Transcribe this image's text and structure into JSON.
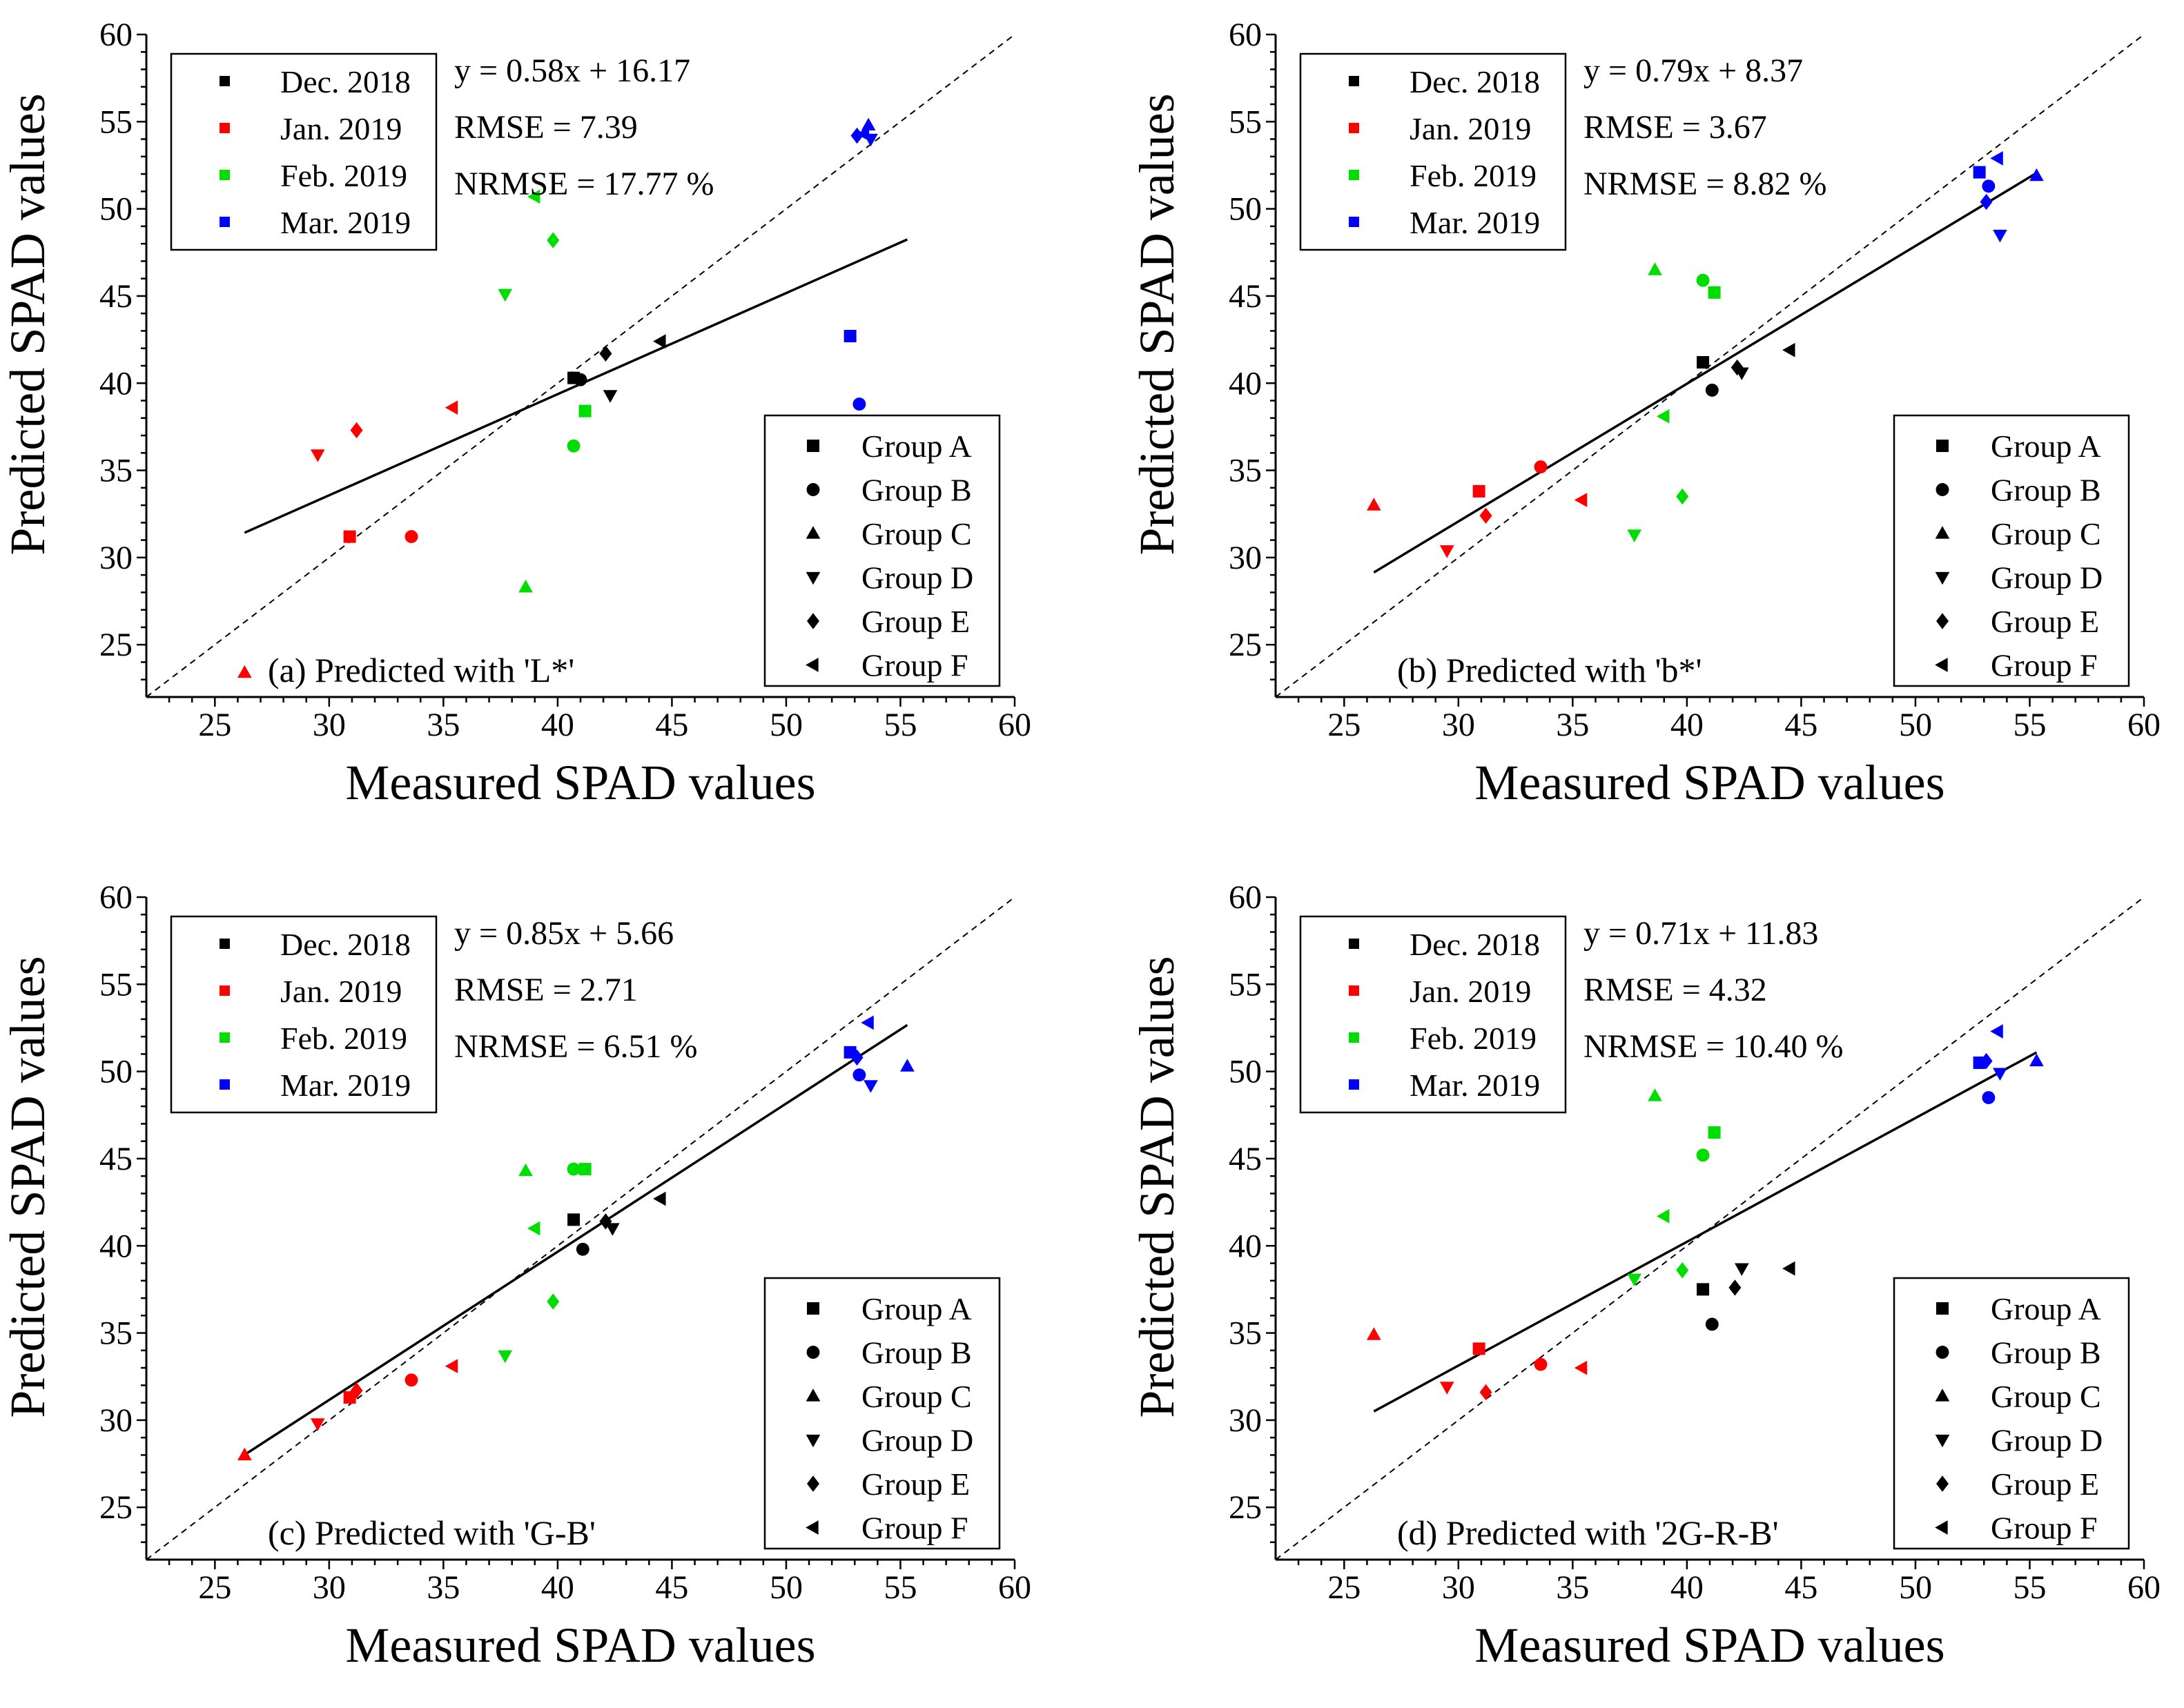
{
  "colors": {
    "Dec. 2018": "#000000",
    "Jan. 2019": "#ff0000",
    "Feb. 2019": "#00dd00",
    "Mar. 2019": "#0000ff"
  },
  "shared": {
    "xlabel": "Measured SPAD values",
    "ylabel": "Predicted SPAD values",
    "xlim": [
      22,
      60
    ],
    "ylim": [
      22,
      60
    ],
    "xticks": [
      25,
      30,
      35,
      40,
      45,
      50,
      55,
      60
    ],
    "yticks": [
      25,
      30,
      35,
      40,
      45,
      50,
      55,
      60
    ],
    "month_legend": [
      "Dec. 2018",
      "Jan. 2019",
      "Feb. 2019",
      "Mar. 2019"
    ],
    "group_legend": [
      {
        "label": "Group A",
        "marker": "square"
      },
      {
        "label": "Group B",
        "marker": "circle"
      },
      {
        "label": "Group C",
        "marker": "triangle-up"
      },
      {
        "label": "Group D",
        "marker": "triangle-down"
      },
      {
        "label": "Group E",
        "marker": "diamond"
      },
      {
        "label": "Group F",
        "marker": "triangle-left"
      }
    ]
  },
  "chart_data": [
    {
      "type": "scatter",
      "id": "a",
      "title": "(a) Predicted with 'L*'",
      "equation": "y = 0.58x + 16.17",
      "rmse": "RMSE = 7.39",
      "nrmse": "NRMSE = 17.77 %",
      "fit": {
        "slope": 0.58,
        "intercept": 16.17,
        "x_range": [
          26.3,
          55.3
        ]
      },
      "points": [
        {
          "x": 40.7,
          "y": 40.3,
          "month": "Dec. 2018",
          "group": "square"
        },
        {
          "x": 41.0,
          "y": 40.2,
          "month": "Dec. 2018",
          "group": "circle"
        },
        {
          "x": 42.3,
          "y": 39.3,
          "month": "Dec. 2018",
          "group": "triangle-down"
        },
        {
          "x": 42.1,
          "y": 41.7,
          "month": "Dec. 2018",
          "group": "diamond"
        },
        {
          "x": 44.5,
          "y": 42.4,
          "month": "Dec. 2018",
          "group": "triangle-left"
        },
        {
          "x": 30.9,
          "y": 31.2,
          "month": "Jan. 2019",
          "group": "square"
        },
        {
          "x": 33.6,
          "y": 31.2,
          "month": "Jan. 2019",
          "group": "circle"
        },
        {
          "x": 26.3,
          "y": 23.4,
          "month": "Jan. 2019",
          "group": "triangle-up"
        },
        {
          "x": 29.5,
          "y": 35.9,
          "month": "Jan. 2019",
          "group": "triangle-down"
        },
        {
          "x": 31.2,
          "y": 37.3,
          "month": "Jan. 2019",
          "group": "diamond"
        },
        {
          "x": 35.4,
          "y": 38.6,
          "month": "Jan. 2019",
          "group": "triangle-left"
        },
        {
          "x": 41.2,
          "y": 38.4,
          "month": "Feb. 2019",
          "group": "square"
        },
        {
          "x": 40.7,
          "y": 36.4,
          "month": "Feb. 2019",
          "group": "circle"
        },
        {
          "x": 38.6,
          "y": 28.3,
          "month": "Feb. 2019",
          "group": "triangle-up"
        },
        {
          "x": 37.7,
          "y": 45.1,
          "month": "Feb. 2019",
          "group": "triangle-down"
        },
        {
          "x": 39.8,
          "y": 48.2,
          "month": "Feb. 2019",
          "group": "diamond"
        },
        {
          "x": 39.0,
          "y": 50.7,
          "month": "Feb. 2019",
          "group": "triangle-left"
        },
        {
          "x": 52.8,
          "y": 42.7,
          "month": "Mar. 2019",
          "group": "square"
        },
        {
          "x": 53.2,
          "y": 38.8,
          "month": "Mar. 2019",
          "group": "circle"
        },
        {
          "x": 53.6,
          "y": 54.8,
          "month": "Mar. 2019",
          "group": "triangle-up"
        },
        {
          "x": 53.7,
          "y": 54.0,
          "month": "Mar. 2019",
          "group": "triangle-down"
        },
        {
          "x": 53.1,
          "y": 54.2,
          "month": "Mar. 2019",
          "group": "diamond"
        },
        {
          "x": 53.4,
          "y": 54.3,
          "month": "Mar. 2019",
          "group": "triangle-left"
        }
      ]
    },
    {
      "type": "scatter",
      "id": "b",
      "title": "(b) Predicted with 'b*'",
      "equation": "y = 0.79x + 8.37",
      "rmse": "RMSE = 3.67",
      "nrmse": "NRMSE = 8.82 %",
      "fit": {
        "slope": 0.79,
        "intercept": 8.37,
        "x_range": [
          26.3,
          55.3
        ]
      },
      "points": [
        {
          "x": 40.7,
          "y": 41.2,
          "month": "Dec. 2018",
          "group": "square"
        },
        {
          "x": 41.1,
          "y": 39.6,
          "month": "Dec. 2018",
          "group": "circle"
        },
        {
          "x": 42.4,
          "y": 40.6,
          "month": "Dec. 2018",
          "group": "triangle-down"
        },
        {
          "x": 42.2,
          "y": 40.9,
          "month": "Dec. 2018",
          "group": "diamond"
        },
        {
          "x": 44.5,
          "y": 41.9,
          "month": "Dec. 2018",
          "group": "triangle-left"
        },
        {
          "x": 30.9,
          "y": 33.8,
          "month": "Jan. 2019",
          "group": "square"
        },
        {
          "x": 33.6,
          "y": 35.2,
          "month": "Jan. 2019",
          "group": "circle"
        },
        {
          "x": 26.3,
          "y": 33.0,
          "month": "Jan. 2019",
          "group": "triangle-up"
        },
        {
          "x": 29.5,
          "y": 30.4,
          "month": "Jan. 2019",
          "group": "triangle-down"
        },
        {
          "x": 31.2,
          "y": 32.4,
          "month": "Jan. 2019",
          "group": "diamond"
        },
        {
          "x": 35.4,
          "y": 33.3,
          "month": "Jan. 2019",
          "group": "triangle-left"
        },
        {
          "x": 41.2,
          "y": 45.2,
          "month": "Feb. 2019",
          "group": "square"
        },
        {
          "x": 40.7,
          "y": 45.9,
          "month": "Feb. 2019",
          "group": "circle"
        },
        {
          "x": 38.6,
          "y": 46.5,
          "month": "Feb. 2019",
          "group": "triangle-up"
        },
        {
          "x": 37.7,
          "y": 31.3,
          "month": "Feb. 2019",
          "group": "triangle-down"
        },
        {
          "x": 39.8,
          "y": 33.5,
          "month": "Feb. 2019",
          "group": "diamond"
        },
        {
          "x": 39.0,
          "y": 38.1,
          "month": "Feb. 2019",
          "group": "triangle-left"
        },
        {
          "x": 52.8,
          "y": 52.1,
          "month": "Mar. 2019",
          "group": "square"
        },
        {
          "x": 53.2,
          "y": 51.3,
          "month": "Mar. 2019",
          "group": "circle"
        },
        {
          "x": 55.3,
          "y": 51.9,
          "month": "Mar. 2019",
          "group": "triangle-up"
        },
        {
          "x": 53.7,
          "y": 48.5,
          "month": "Mar. 2019",
          "group": "triangle-down"
        },
        {
          "x": 53.1,
          "y": 50.4,
          "month": "Mar. 2019",
          "group": "diamond"
        },
        {
          "x": 53.6,
          "y": 52.9,
          "month": "Mar. 2019",
          "group": "triangle-left"
        }
      ]
    },
    {
      "type": "scatter",
      "id": "c",
      "title": "(c) Predicted with 'G-B'",
      "equation": "y = 0.85x + 5.66",
      "rmse": "RMSE = 2.71",
      "nrmse": "NRMSE = 6.51 %",
      "fit": {
        "slope": 0.85,
        "intercept": 5.66,
        "x_range": [
          26.3,
          55.3
        ]
      },
      "points": [
        {
          "x": 40.7,
          "y": 41.5,
          "month": "Dec. 2018",
          "group": "square"
        },
        {
          "x": 41.1,
          "y": 39.8,
          "month": "Dec. 2018",
          "group": "circle"
        },
        {
          "x": 42.4,
          "y": 41.0,
          "month": "Dec. 2018",
          "group": "triangle-down"
        },
        {
          "x": 42.1,
          "y": 41.4,
          "month": "Dec. 2018",
          "group": "diamond"
        },
        {
          "x": 44.5,
          "y": 42.7,
          "month": "Dec. 2018",
          "group": "triangle-left"
        },
        {
          "x": 30.9,
          "y": 31.3,
          "month": "Jan. 2019",
          "group": "square"
        },
        {
          "x": 33.6,
          "y": 32.3,
          "month": "Jan. 2019",
          "group": "circle"
        },
        {
          "x": 26.3,
          "y": 28.0,
          "month": "Jan. 2019",
          "group": "triangle-up"
        },
        {
          "x": 29.5,
          "y": 29.8,
          "month": "Jan. 2019",
          "group": "triangle-down"
        },
        {
          "x": 31.2,
          "y": 31.7,
          "month": "Jan. 2019",
          "group": "diamond"
        },
        {
          "x": 35.4,
          "y": 33.1,
          "month": "Jan. 2019",
          "group": "triangle-left"
        },
        {
          "x": 41.2,
          "y": 44.4,
          "month": "Feb. 2019",
          "group": "square"
        },
        {
          "x": 40.7,
          "y": 44.4,
          "month": "Feb. 2019",
          "group": "circle"
        },
        {
          "x": 38.6,
          "y": 44.3,
          "month": "Feb. 2019",
          "group": "triangle-up"
        },
        {
          "x": 37.7,
          "y": 33.7,
          "month": "Feb. 2019",
          "group": "triangle-down"
        },
        {
          "x": 39.8,
          "y": 36.8,
          "month": "Feb. 2019",
          "group": "diamond"
        },
        {
          "x": 39.0,
          "y": 41.0,
          "month": "Feb. 2019",
          "group": "triangle-left"
        },
        {
          "x": 52.8,
          "y": 51.1,
          "month": "Mar. 2019",
          "group": "square"
        },
        {
          "x": 53.2,
          "y": 49.8,
          "month": "Mar. 2019",
          "group": "circle"
        },
        {
          "x": 55.3,
          "y": 50.3,
          "month": "Mar. 2019",
          "group": "triangle-up"
        },
        {
          "x": 53.7,
          "y": 49.2,
          "month": "Mar. 2019",
          "group": "triangle-down"
        },
        {
          "x": 53.1,
          "y": 50.8,
          "month": "Mar. 2019",
          "group": "diamond"
        },
        {
          "x": 53.6,
          "y": 52.8,
          "month": "Mar. 2019",
          "group": "triangle-left"
        }
      ]
    },
    {
      "type": "scatter",
      "id": "d",
      "title": "(d) Predicted with '2G-R-B'",
      "equation": "y = 0.71x + 11.83",
      "rmse": "RMSE = 4.32",
      "nrmse": "NRMSE = 10.40 %",
      "fit": {
        "slope": 0.71,
        "intercept": 11.83,
        "x_range": [
          26.3,
          55.3
        ]
      },
      "points": [
        {
          "x": 40.7,
          "y": 37.5,
          "month": "Dec. 2018",
          "group": "square"
        },
        {
          "x": 41.1,
          "y": 35.5,
          "month": "Dec. 2018",
          "group": "circle"
        },
        {
          "x": 42.4,
          "y": 38.7,
          "month": "Dec. 2018",
          "group": "triangle-down"
        },
        {
          "x": 42.1,
          "y": 37.6,
          "month": "Dec. 2018",
          "group": "diamond"
        },
        {
          "x": 44.5,
          "y": 38.7,
          "month": "Dec. 2018",
          "group": "triangle-left"
        },
        {
          "x": 30.9,
          "y": 34.1,
          "month": "Jan. 2019",
          "group": "square"
        },
        {
          "x": 33.6,
          "y": 33.2,
          "month": "Jan. 2019",
          "group": "circle"
        },
        {
          "x": 26.3,
          "y": 34.9,
          "month": "Jan. 2019",
          "group": "triangle-up"
        },
        {
          "x": 29.5,
          "y": 31.9,
          "month": "Jan. 2019",
          "group": "triangle-down"
        },
        {
          "x": 31.2,
          "y": 31.6,
          "month": "Jan. 2019",
          "group": "diamond"
        },
        {
          "x": 35.4,
          "y": 33.0,
          "month": "Jan. 2019",
          "group": "triangle-left"
        },
        {
          "x": 41.2,
          "y": 46.5,
          "month": "Feb. 2019",
          "group": "square"
        },
        {
          "x": 40.7,
          "y": 45.2,
          "month": "Feb. 2019",
          "group": "circle"
        },
        {
          "x": 38.6,
          "y": 48.6,
          "month": "Feb. 2019",
          "group": "triangle-up"
        },
        {
          "x": 37.7,
          "y": 38.1,
          "month": "Feb. 2019",
          "group": "triangle-down"
        },
        {
          "x": 39.8,
          "y": 38.6,
          "month": "Feb. 2019",
          "group": "diamond"
        },
        {
          "x": 39.0,
          "y": 41.7,
          "month": "Feb. 2019",
          "group": "triangle-left"
        },
        {
          "x": 52.8,
          "y": 50.5,
          "month": "Mar. 2019",
          "group": "square"
        },
        {
          "x": 53.2,
          "y": 48.5,
          "month": "Mar. 2019",
          "group": "circle"
        },
        {
          "x": 55.3,
          "y": 50.6,
          "month": "Mar. 2019",
          "group": "triangle-up"
        },
        {
          "x": 53.7,
          "y": 49.9,
          "month": "Mar. 2019",
          "group": "triangle-down"
        },
        {
          "x": 53.1,
          "y": 50.6,
          "month": "Mar. 2019",
          "group": "diamond"
        },
        {
          "x": 53.6,
          "y": 52.3,
          "month": "Mar. 2019",
          "group": "triangle-left"
        }
      ]
    }
  ]
}
